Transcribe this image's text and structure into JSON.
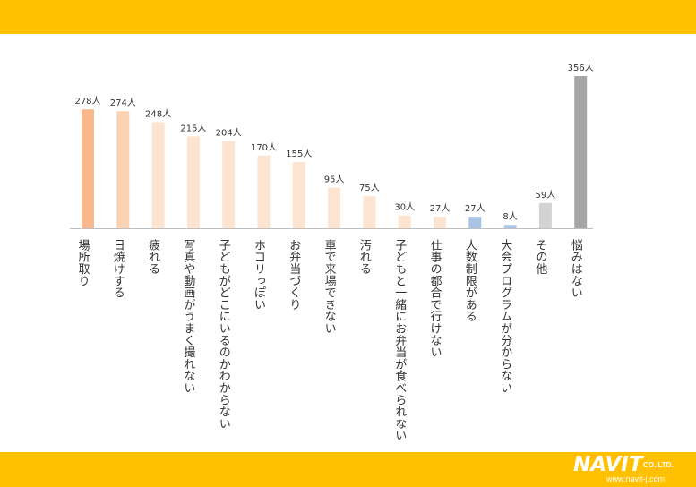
{
  "colors": {
    "band": "#ffc000",
    "axis": "#bfbfbf",
    "text": "#333333",
    "peach_dark": "#f8b88b",
    "peach_mid": "#fbd2b2",
    "peach_light": "#fde4d0",
    "blue": "#a9c4e4",
    "gray_light": "#d3d3d3",
    "gray_dark": "#a6a6a6"
  },
  "logo": {
    "name": "NAVIT",
    "company_suffix": "CO.,LTD.",
    "url": "www.navit-j.com"
  },
  "chart_data": {
    "type": "bar",
    "unit": "人",
    "ylim": [
      0,
      356
    ],
    "grid": false,
    "categories": [
      "場所取り",
      "日焼けする",
      "疲れる",
      "写真や動画がうまく撮れない",
      "子どもがどこにいるのかわからない",
      "ホコリっぽい",
      "お弁当づくり",
      "車で来場できない",
      "汚れる",
      "子どもと一緒にお弁当が食べられない",
      "仕事の都合で行けない",
      "人数制限がある",
      "大会プログラムが分からない",
      "その他",
      "悩みはない"
    ],
    "values": [
      278,
      274,
      248,
      215,
      204,
      170,
      155,
      95,
      75,
      30,
      27,
      27,
      8,
      59,
      356
    ],
    "value_labels": [
      "278人",
      "274人",
      "248人",
      "215人",
      "204人",
      "170人",
      "155人",
      "95人",
      "75人",
      "30人",
      "27人",
      "27人",
      "8人",
      "59人",
      "356人"
    ],
    "bar_colors": [
      "peach_dark",
      "peach_mid",
      "peach_light",
      "peach_light",
      "peach_light",
      "peach_light",
      "peach_light",
      "peach_light",
      "peach_light",
      "peach_light",
      "peach_light",
      "blue",
      "blue",
      "gray_light",
      "gray_dark"
    ]
  }
}
